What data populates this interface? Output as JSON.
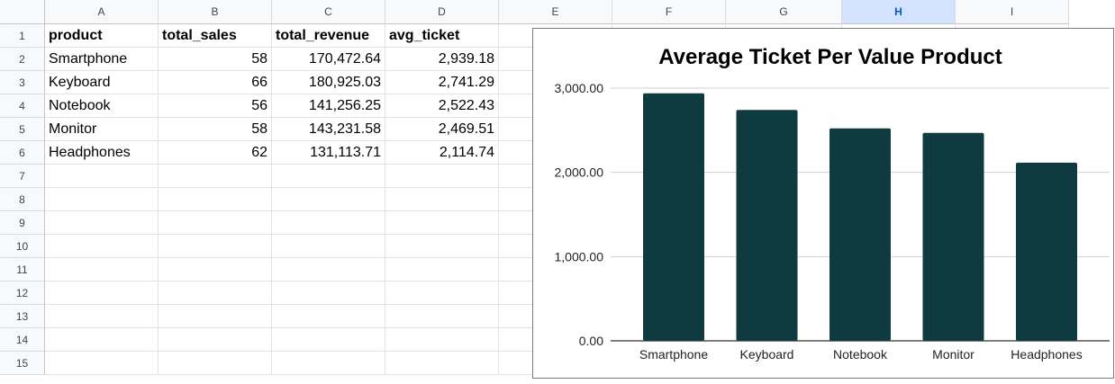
{
  "spreadsheet": {
    "columns": [
      "A",
      "B",
      "C",
      "D",
      "E",
      "F",
      "G",
      "H",
      "I"
    ],
    "selected_column": "H",
    "rows": [
      "1",
      "2",
      "3",
      "4",
      "5",
      "6",
      "7",
      "8",
      "9",
      "10",
      "11",
      "12",
      "13",
      "14",
      "15"
    ],
    "header": [
      "product",
      "total_sales",
      "total_revenue",
      "avg_ticket"
    ],
    "data": [
      [
        "Smartphone",
        "58",
        "170,472.64",
        "2,939.18"
      ],
      [
        "Keyboard",
        "66",
        "180,925.03",
        "2,741.29"
      ],
      [
        "Notebook",
        "56",
        "141,256.25",
        "2,522.43"
      ],
      [
        "Monitor",
        "58",
        "143,231.58",
        "2,469.51"
      ],
      [
        "Headphones",
        "62",
        "131,113.71",
        "2,114.74"
      ]
    ]
  },
  "chart_data": {
    "type": "bar",
    "title": "Average Ticket Per Value Product",
    "xlabel": "",
    "ylabel": "",
    "categories": [
      "Smartphone",
      "Keyboard",
      "Notebook",
      "Monitor",
      "Headphones"
    ],
    "values": [
      2939.18,
      2741.29,
      2522.43,
      2469.51,
      2114.74
    ],
    "ylim": [
      0,
      3000
    ],
    "yticks": [
      "0.00",
      "1,000.00",
      "2,000.00",
      "3,000.00"
    ],
    "grid": true,
    "legend": "none",
    "bar_color": "#0f3a40"
  }
}
